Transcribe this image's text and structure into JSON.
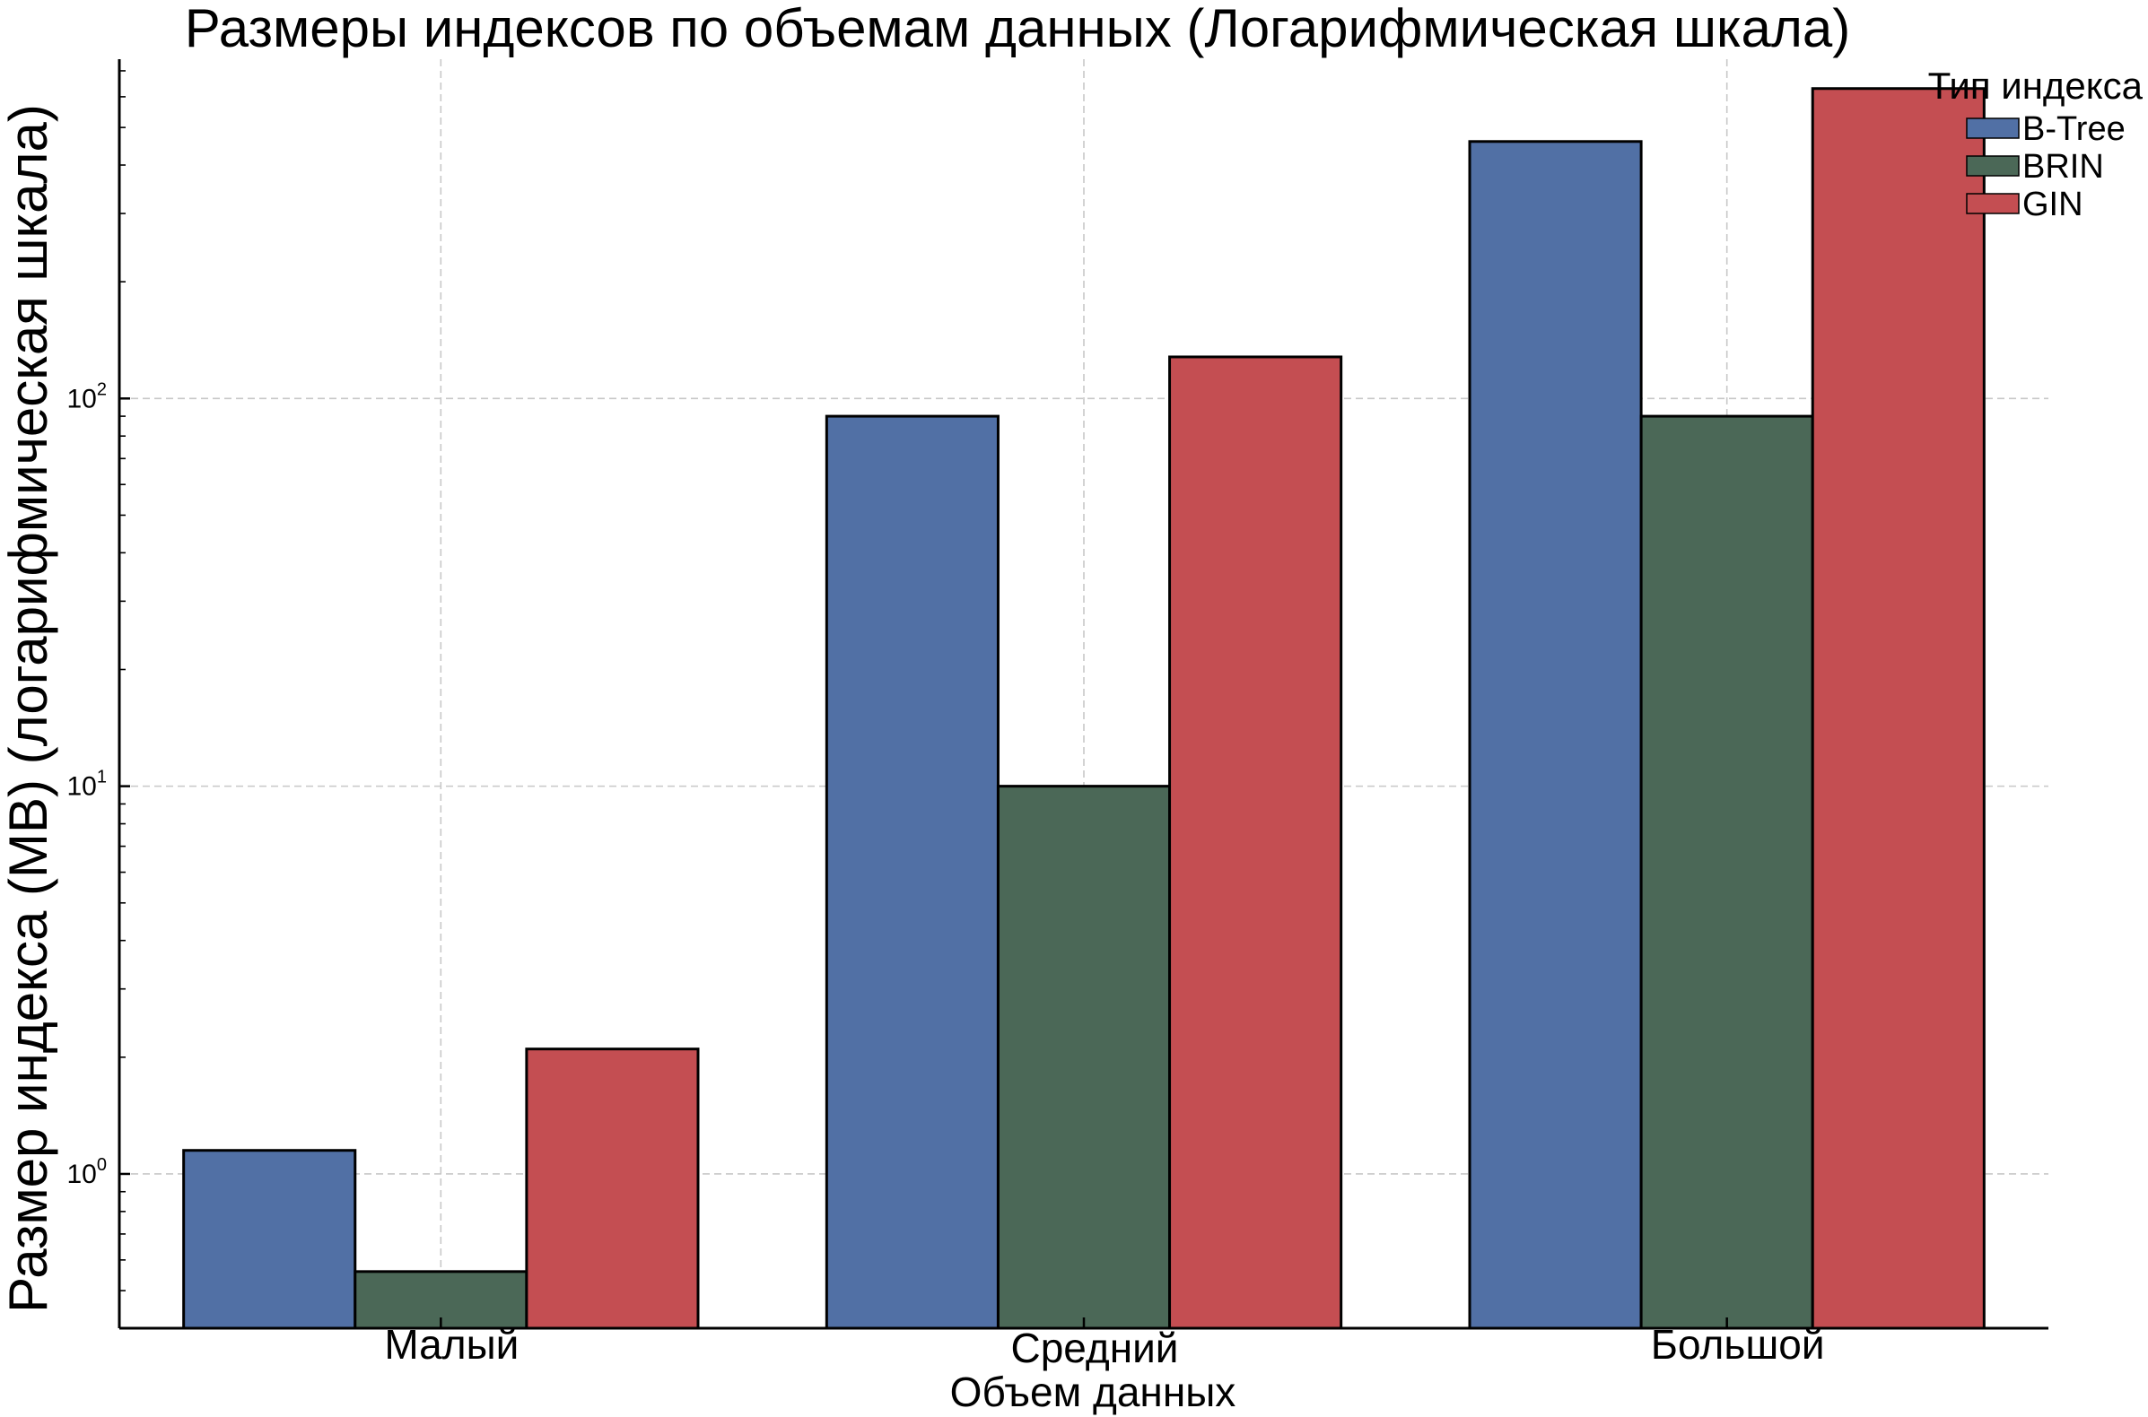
{
  "chart_data": {
    "type": "bar",
    "title": "Размеры индексов по объемам данных (Логарифмическая шкала)",
    "xlabel": "Объем данных",
    "ylabel": "Размер индекса (MB) (логарифмическая шкала)",
    "yscale": "log",
    "ylim": [
      0.4,
      750
    ],
    "yticks": [
      1,
      10,
      100
    ],
    "grid": true,
    "categories": [
      "Малый",
      "Средний",
      "Большой"
    ],
    "legend": {
      "title": "Тип индекса",
      "placement": "top-right"
    },
    "series": [
      {
        "name": "B-Tree",
        "color": "#5170a5",
        "values": [
          1.15,
          90,
          460
        ]
      },
      {
        "name": "BRIN",
        "color": "#4b6857",
        "values": [
          0.56,
          10,
          90
        ]
      },
      {
        "name": "GIN",
        "color": "#c44e52",
        "values": [
          2.1,
          128,
          630
        ]
      }
    ]
  }
}
